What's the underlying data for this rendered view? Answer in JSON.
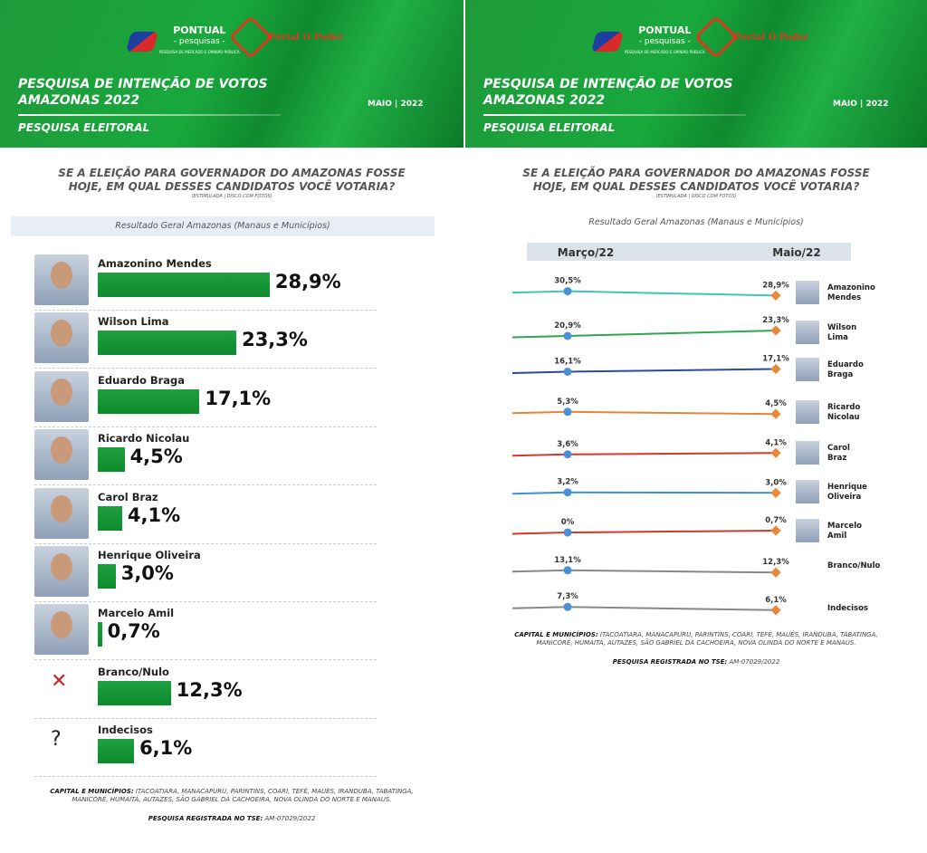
{
  "header": {
    "brand1": "PONTUAL",
    "brand1_sub": "- pesquisas -",
    "brand1_tag": "PESQUISA DE MERCADO E OPINIÃO PÚBLICA",
    "brand2": "Portal O Poder",
    "title_line1": "PESQUISA DE INTENÇÃO DE VOTOS",
    "title_line2": "AMAZONAS 2022",
    "subtitle": "PESQUISA ELEITORAL",
    "date": "MAIO | 2022"
  },
  "question": {
    "line1": "SE A ELEIÇÃO PARA GOVERNADOR DO AMAZONAS FOSSE",
    "line2": "HOJE, EM QUAL DESSES CANDIDATOS VOCÊ VOTARIA?",
    "note": "(ESTIMULADA | DISCO COM FOTOS)"
  },
  "result_label": "Resultado Geral Amazonas (Manaus e Municípios)",
  "footer": {
    "cities_label": "CAPITAL E MUNICÍPIOS:",
    "cities": "ITACOATIARA, MANACAPURU, PARINTINS, COARI, TEFÉ, MAUÉS, IRANDUBA, TABATINGA, MANICORÉ, HUMAITÁ, AUTAZES, SÃO GABRIEL DA CACHOEIRA, NOVA OLINDA DO NORTE E MANAUS.",
    "tse_label": "PESQUISA REGISTRADA NO TSE:",
    "tse": "AM-07029/2022"
  },
  "colors": {
    "header_green": "#18a83c",
    "bar_green": "#1fa040",
    "march_marker": "#4a90d9",
    "may_marker": "#e8893a"
  },
  "chart_data": [
    {
      "type": "bar",
      "orientation": "horizontal",
      "categories": [
        "Amazonino Mendes",
        "Wilson Lima",
        "Eduardo Braga",
        "Ricardo Nicolau",
        "Carol Braz",
        "Henrique Oliveira",
        "Marcelo Amil",
        "Branco/Nulo",
        "Indecisos"
      ],
      "values": [
        28.9,
        23.3,
        17.1,
        4.5,
        4.1,
        3.0,
        0.7,
        12.3,
        6.1
      ],
      "labels": [
        "28,9%",
        "23,3%",
        "17,1%",
        "4,5%",
        "4,1%",
        "3,0%",
        "0,7%",
        "12,3%",
        "6,1%"
      ],
      "unit": "%"
    },
    {
      "type": "line",
      "x": [
        "Março/22",
        "Maio/22"
      ],
      "series": [
        {
          "name": "Amazonino Mendes",
          "values": [
            30.5,
            28.9
          ],
          "labels": [
            "30,5%",
            "28,9%"
          ],
          "color": "#3cc8b4"
        },
        {
          "name": "Wilson Lima",
          "values": [
            20.9,
            23.3
          ],
          "labels": [
            "20,9%",
            "23,3%"
          ],
          "color": "#2fa84f"
        },
        {
          "name": "Eduardo Braga",
          "values": [
            16.1,
            17.1
          ],
          "labels": [
            "16,1%",
            "17,1%"
          ],
          "color": "#2a4aa0"
        },
        {
          "name": "Ricardo Nicolau",
          "values": [
            5.3,
            4.5
          ],
          "labels": [
            "5,3%",
            "4,5%"
          ],
          "color": "#e8833a"
        },
        {
          "name": "Carol Braz",
          "values": [
            3.6,
            4.1
          ],
          "labels": [
            "3,6%",
            "4,1%"
          ],
          "color": "#d03a2a"
        },
        {
          "name": "Henrique Oliveira",
          "values": [
            3.2,
            3.0
          ],
          "labels": [
            "3,2%",
            "3,0%"
          ],
          "color": "#3b8fd0"
        },
        {
          "name": "Marcelo Amil",
          "values": [
            0,
            0.7
          ],
          "labels": [
            "0%",
            "0,7%"
          ],
          "color": "#d03a2a"
        },
        {
          "name": "Branco/Nulo",
          "values": [
            13.1,
            12.3
          ],
          "labels": [
            "13,1%",
            "12,3%"
          ],
          "color": "#888888"
        },
        {
          "name": "Indecisos",
          "values": [
            7.3,
            6.1
          ],
          "labels": [
            "7,3%",
            "6,1%"
          ],
          "color": "#888888"
        }
      ]
    }
  ]
}
